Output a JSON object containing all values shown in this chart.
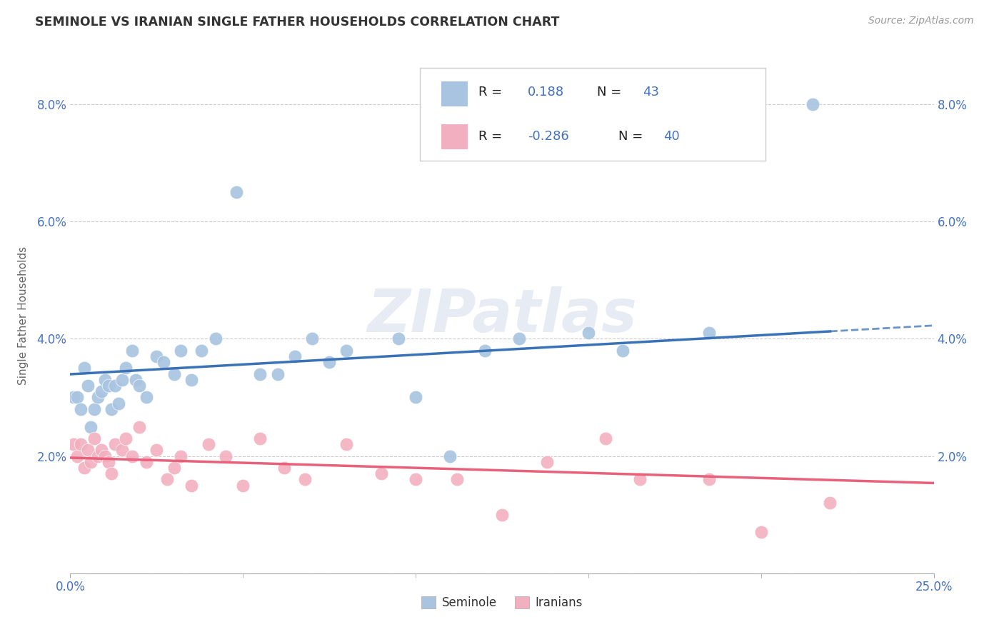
{
  "title": "SEMINOLE VS IRANIAN SINGLE FATHER HOUSEHOLDS CORRELATION CHART",
  "source": "Source: ZipAtlas.com",
  "ylabel": "Single Father Households",
  "xlim": [
    0.0,
    0.25
  ],
  "ylim": [
    0.0,
    0.088
  ],
  "yticks": [
    0.0,
    0.02,
    0.04,
    0.06,
    0.08
  ],
  "ytick_labels": [
    "",
    "2.0%",
    "4.0%",
    "6.0%",
    "8.0%"
  ],
  "xtick_labels_bottom": [
    "0.0%",
    "25.0%"
  ],
  "xtick_vals_bottom": [
    0.0,
    0.25
  ],
  "seminole_color": "#a8c4e0",
  "iranians_color": "#f2afc0",
  "seminole_line_color": "#3a72b8",
  "iranians_line_color": "#e8607a",
  "seminole_R": 0.188,
  "seminole_N": 43,
  "iranians_R": -0.286,
  "iranians_N": 40,
  "legend_label_1": "Seminole",
  "legend_label_2": "Iranians",
  "watermark_text": "ZIPatlas",
  "background_color": "#ffffff",
  "grid_color": "#cccccc",
  "tick_color": "#4472c4",
  "seminole_x": [
    0.001,
    0.002,
    0.003,
    0.004,
    0.005,
    0.006,
    0.007,
    0.008,
    0.009,
    0.01,
    0.011,
    0.012,
    0.013,
    0.014,
    0.015,
    0.016,
    0.018,
    0.019,
    0.02,
    0.022,
    0.025,
    0.027,
    0.03,
    0.032,
    0.035,
    0.038,
    0.042,
    0.048,
    0.055,
    0.06,
    0.065,
    0.07,
    0.075,
    0.08,
    0.095,
    0.1,
    0.11,
    0.12,
    0.13,
    0.15,
    0.16,
    0.185,
    0.215
  ],
  "seminole_y": [
    0.03,
    0.03,
    0.028,
    0.035,
    0.032,
    0.025,
    0.028,
    0.03,
    0.031,
    0.033,
    0.032,
    0.028,
    0.032,
    0.029,
    0.033,
    0.035,
    0.038,
    0.033,
    0.032,
    0.03,
    0.037,
    0.036,
    0.034,
    0.038,
    0.033,
    0.038,
    0.04,
    0.065,
    0.034,
    0.034,
    0.037,
    0.04,
    0.036,
    0.038,
    0.04,
    0.03,
    0.02,
    0.038,
    0.04,
    0.041,
    0.038,
    0.041,
    0.08
  ],
  "iranians_x": [
    0.001,
    0.002,
    0.003,
    0.004,
    0.005,
    0.006,
    0.007,
    0.008,
    0.009,
    0.01,
    0.011,
    0.012,
    0.013,
    0.015,
    0.016,
    0.018,
    0.02,
    0.022,
    0.025,
    0.028,
    0.03,
    0.032,
    0.035,
    0.04,
    0.045,
    0.05,
    0.055,
    0.062,
    0.068,
    0.08,
    0.09,
    0.1,
    0.112,
    0.125,
    0.138,
    0.155,
    0.165,
    0.185,
    0.2,
    0.22
  ],
  "iranians_y": [
    0.022,
    0.02,
    0.022,
    0.018,
    0.021,
    0.019,
    0.023,
    0.02,
    0.021,
    0.02,
    0.019,
    0.017,
    0.022,
    0.021,
    0.023,
    0.02,
    0.025,
    0.019,
    0.021,
    0.016,
    0.018,
    0.02,
    0.015,
    0.022,
    0.02,
    0.015,
    0.023,
    0.018,
    0.016,
    0.022,
    0.017,
    0.016,
    0.016,
    0.01,
    0.019,
    0.023,
    0.016,
    0.016,
    0.007,
    0.012
  ]
}
